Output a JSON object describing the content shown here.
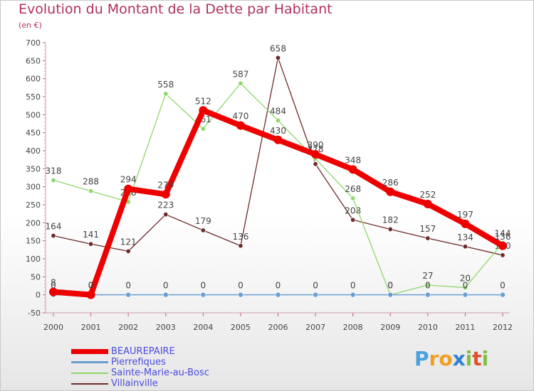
{
  "chart_data": {
    "type": "line",
    "title": "Evolution du Montant de la Dette par Habitant",
    "subtitle": "(en €)",
    "xlabel": "",
    "ylabel": "",
    "categories": [
      "2000",
      "2001",
      "2002",
      "2003",
      "2004",
      "2005",
      "2006",
      "2007",
      "2008",
      "2009",
      "2010",
      "2011",
      "2012"
    ],
    "ylim": [
      -50,
      700
    ],
    "yticks": [
      -50,
      0,
      50,
      100,
      150,
      200,
      250,
      300,
      350,
      400,
      450,
      500,
      550,
      600,
      650,
      700
    ],
    "grid": false,
    "series": [
      {
        "name": "Villainville",
        "color": "#6e2b2b",
        "values": [
          164,
          141,
          121,
          223,
          179,
          136,
          658,
          363,
          208,
          182,
          157,
          134,
          110
        ],
        "labels": [
          "164",
          "141",
          "121",
          "223",
          "179",
          "136",
          "658",
          "",
          "208",
          "182",
          "157",
          "134",
          "110"
        ]
      },
      {
        "name": "Sainte-Marie-au-Bosc",
        "color": "#8ed86a",
        "values": [
          318,
          288,
          258,
          558,
          461,
          587,
          484,
          378,
          268,
          0,
          27,
          20,
          144
        ],
        "labels": [
          "318",
          "288",
          "258",
          "558",
          "461",
          "587",
          "484",
          "378",
          "268",
          "0",
          "27",
          "20",
          "144"
        ]
      },
      {
        "name": "Pierrefiques",
        "color": "#6a9ed0",
        "values": [
          0,
          0,
          0,
          0,
          0,
          0,
          0,
          0,
          0,
          0,
          0,
          0,
          0
        ],
        "labels": [
          "0",
          "0",
          "0",
          "0",
          "0",
          "0",
          "0",
          "0",
          "0",
          "0",
          "0",
          "0",
          "0"
        ]
      },
      {
        "name": "BEAUREPAIRE",
        "color": "#ee0000",
        "values": [
          8,
          0,
          294,
          279,
          512,
          470,
          430,
          390,
          348,
          286,
          252,
          197,
          136
        ],
        "labels": [
          "8",
          "0",
          "294",
          "279",
          "512",
          "470",
          "430",
          "390",
          "348",
          "286",
          "252",
          "197",
          "136"
        ]
      }
    ]
  },
  "legend": {
    "items": [
      {
        "name": "BEAUREPAIRE",
        "color": "#ee0000"
      },
      {
        "name": "Pierrefiques",
        "color": "#6a9ed0"
      },
      {
        "name": "Sainte-Marie-au-Bosc",
        "color": "#8ed86a"
      },
      {
        "name": "Villainville",
        "color": "#6e2b2b"
      }
    ]
  },
  "logo": {
    "letters": [
      "P",
      "r",
      "o",
      "x",
      "i",
      "t",
      "i"
    ],
    "colors": [
      "#4aa0e0",
      "#f0a020",
      "#f0a020",
      "#3080d0",
      "#80c040",
      "#e05030",
      "#80c040"
    ]
  }
}
